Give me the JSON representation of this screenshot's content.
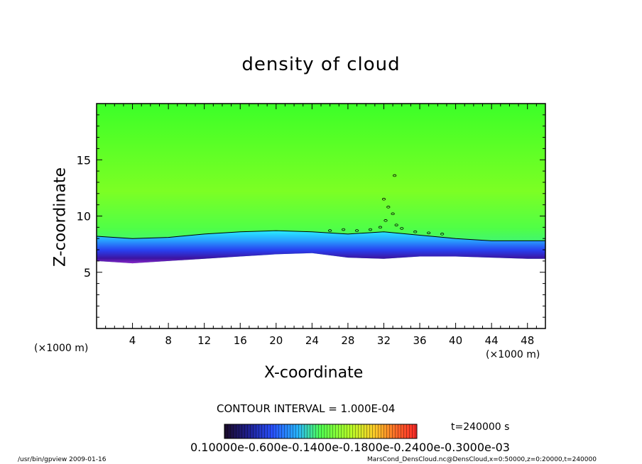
{
  "chart_data": {
    "type": "heatmap",
    "title": "density of cloud",
    "xlabel": "X-coordinate",
    "ylabel": "Z-coordinate",
    "x_unit_labels": [
      "(×1000 m)",
      "(×1000 m)"
    ],
    "xlim": [
      0,
      50
    ],
    "ylim": [
      0,
      20
    ],
    "x_ticks": [
      4,
      8,
      12,
      16,
      20,
      24,
      28,
      32,
      36,
      40,
      44,
      48
    ],
    "y_ticks": [
      5,
      10,
      15
    ],
    "field": {
      "description_values": "cloud density (e-03), high plateau above ~8.5 km, decreasing to zero near 6 km",
      "top_profile": [
        {
          "x": 0,
          "z": 6.0
        },
        {
          "x": 4,
          "z": 5.8
        },
        {
          "x": 8,
          "z": 6.0
        },
        {
          "x": 12,
          "z": 6.2
        },
        {
          "x": 16,
          "z": 6.4
        },
        {
          "x": 20,
          "z": 6.6
        },
        {
          "x": 24,
          "z": 6.7
        },
        {
          "x": 28,
          "z": 6.3
        },
        {
          "x": 32,
          "z": 6.2
        },
        {
          "x": 36,
          "z": 6.4
        },
        {
          "x": 40,
          "z": 6.4
        },
        {
          "x": 44,
          "z": 6.3
        },
        {
          "x": 48,
          "z": 6.2
        },
        {
          "x": 50,
          "z": 6.2
        }
      ],
      "contour_line": [
        {
          "x": 0,
          "z": 8.2
        },
        {
          "x": 4,
          "z": 8.0
        },
        {
          "x": 8,
          "z": 8.1
        },
        {
          "x": 12,
          "z": 8.4
        },
        {
          "x": 16,
          "z": 8.6
        },
        {
          "x": 20,
          "z": 8.7
        },
        {
          "x": 24,
          "z": 8.6
        },
        {
          "x": 28,
          "z": 8.4
        },
        {
          "x": 32,
          "z": 8.6
        },
        {
          "x": 36,
          "z": 8.3
        },
        {
          "x": 40,
          "z": 8.0
        },
        {
          "x": 44,
          "z": 7.8
        },
        {
          "x": 48,
          "z": 7.8
        },
        {
          "x": 50,
          "z": 7.8
        }
      ]
    },
    "colorbar": {
      "tick_labels": "0.10000e-0.600e-0.1400e-0.1800e-0.2400e-0.3000e-03",
      "colors": [
        "#1a0a28",
        "#1e1e8c",
        "#2850ff",
        "#28b4ff",
        "#50ff50",
        "#b4ff28",
        "#ffcc28",
        "#ff6428",
        "#ff2828"
      ]
    },
    "contour_interval": "CONTOUR INTERVAL = 1.000E-04",
    "time": "t=240000 s"
  },
  "footer": {
    "left": "/usr/bin/gpview   2009-01-16",
    "right": "MarsCond_DensCloud.nc@DensCloud,x=0:50000,z=0:20000,t=240000"
  }
}
